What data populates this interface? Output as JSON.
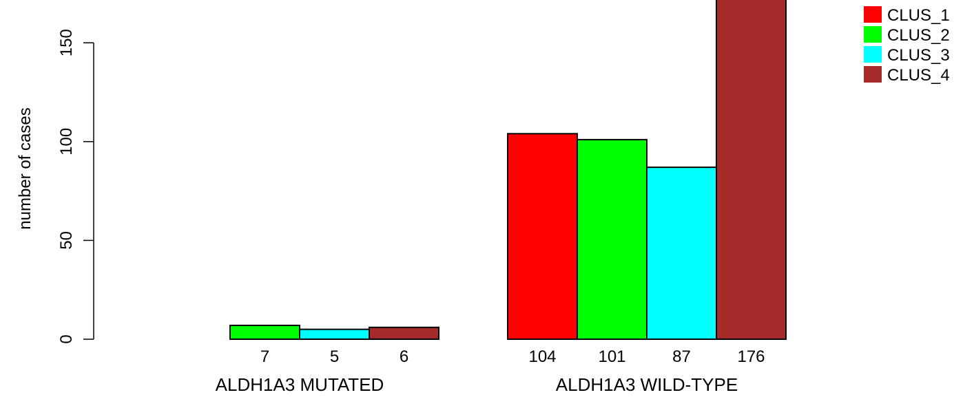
{
  "chart_data": {
    "type": "bar",
    "ylabel": "number of cases",
    "ylim": [
      0,
      176
    ],
    "yticks": [
      0,
      50,
      100,
      150
    ],
    "groups": [
      "ALDH1A3 MUTATED",
      "ALDH1A3 WILD-TYPE"
    ],
    "series": [
      {
        "name": "CLUS_1",
        "color": "#ff0000",
        "values": [
          0,
          104
        ]
      },
      {
        "name": "CLUS_2",
        "color": "#00ff00",
        "values": [
          7,
          101
        ]
      },
      {
        "name": "CLUS_3",
        "color": "#00ffff",
        "values": [
          5,
          87
        ]
      },
      {
        "name": "CLUS_4",
        "color": "#a52a2a",
        "values": [
          6,
          176
        ]
      }
    ],
    "bar_value_labels": [
      [
        "",
        "7",
        "5",
        "6"
      ],
      [
        "104",
        "101",
        "87",
        "176"
      ]
    ],
    "legend_position": "top-right"
  }
}
